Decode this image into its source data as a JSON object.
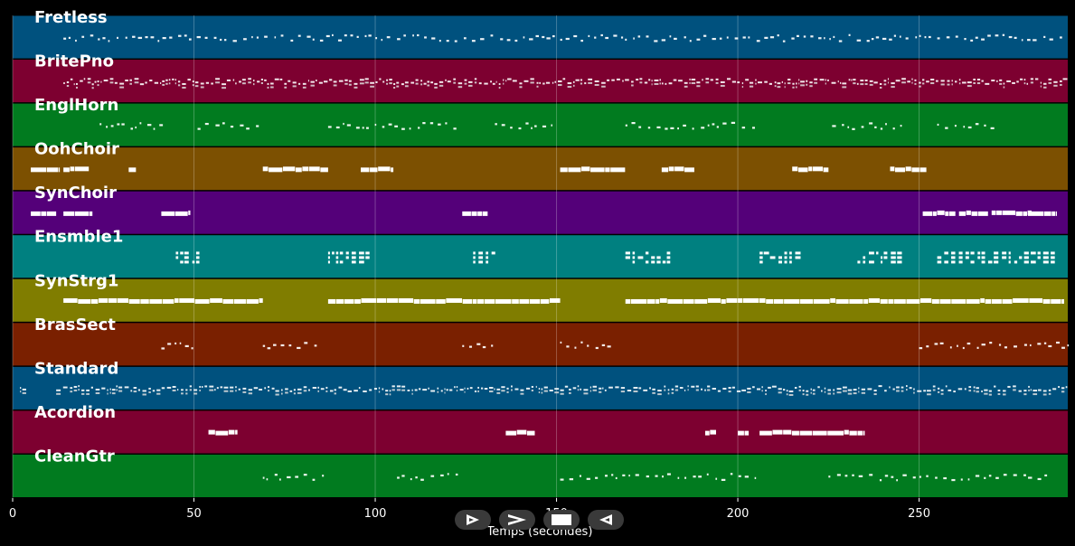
{
  "chart_data": {
    "type": "piano-roll",
    "xlabel": "Temps (secondes)",
    "xlim": [
      0,
      291
    ],
    "x_ticks": [
      0,
      50,
      100,
      150,
      200,
      250
    ],
    "grid": true,
    "tracks": [
      {
        "name": "Fretless",
        "color": "#00517e",
        "style": "dots",
        "segments": [
          [
            14,
            291
          ]
        ]
      },
      {
        "name": "BritePno",
        "color": "#7d0030",
        "style": "dense",
        "segments": [
          [
            14,
            291
          ]
        ]
      },
      {
        "name": "EnglHorn",
        "color": "#017b1f",
        "style": "dots",
        "segments": [
          [
            24,
            42
          ],
          [
            51,
            68
          ],
          [
            87,
            122
          ],
          [
            133,
            150
          ],
          [
            169,
            205
          ],
          [
            226,
            245
          ],
          [
            255,
            270
          ]
        ]
      },
      {
        "name": "OohChoir",
        "color": "#7c5001",
        "style": "blocks",
        "segments": [
          [
            5,
            13
          ],
          [
            14,
            21
          ],
          [
            32,
            34
          ],
          [
            69,
            87
          ],
          [
            96,
            105
          ],
          [
            151,
            169
          ],
          [
            179,
            188
          ],
          [
            215,
            225
          ],
          [
            242,
            252
          ]
        ]
      },
      {
        "name": "SynChoir",
        "color": "#540079",
        "style": "blocks",
        "segments": [
          [
            5,
            12
          ],
          [
            14,
            22
          ],
          [
            41,
            49
          ],
          [
            124,
            131
          ],
          [
            251,
            260
          ],
          [
            261,
            269
          ],
          [
            270,
            281
          ],
          [
            280,
            288
          ]
        ]
      },
      {
        "name": "Ensmble1",
        "color": "#008080",
        "style": "clusters",
        "segments": [
          [
            45,
            52
          ],
          [
            87,
            98
          ],
          [
            127,
            133
          ],
          [
            169,
            181
          ],
          [
            206,
            217
          ],
          [
            233,
            244
          ],
          [
            255,
            288
          ]
        ]
      },
      {
        "name": "SynStrg1",
        "color": "#807d00",
        "style": "blocks",
        "segments": [
          [
            14,
            69
          ],
          [
            87,
            151
          ],
          [
            169,
            290
          ]
        ]
      },
      {
        "name": "BrasSect",
        "color": "#7a2000",
        "style": "dots",
        "segments": [
          [
            41,
            51
          ],
          [
            69,
            85
          ],
          [
            124,
            133
          ],
          [
            151,
            166
          ],
          [
            250,
            291
          ]
        ]
      },
      {
        "name": "Standard",
        "color": "#00517e",
        "style": "dense",
        "segments": [
          [
            2,
            4
          ],
          [
            12,
            291
          ]
        ]
      },
      {
        "name": "Acordion",
        "color": "#7d0030",
        "style": "blocks",
        "segments": [
          [
            54,
            62
          ],
          [
            136,
            144
          ],
          [
            191,
            194
          ],
          [
            200,
            203
          ],
          [
            206,
            235
          ]
        ]
      },
      {
        "name": "CleanGtr",
        "color": "#017b1f",
        "style": "dots",
        "segments": [
          [
            69,
            87
          ],
          [
            106,
            123
          ],
          [
            151,
            205
          ],
          [
            225,
            286
          ]
        ]
      }
    ]
  },
  "controls": [
    {
      "name": "play-button",
      "icon": "play-outline-icon"
    },
    {
      "name": "fast-forward-button",
      "icon": "chevron-right-icon"
    },
    {
      "name": "stop-button",
      "icon": "stop-icon"
    },
    {
      "name": "rewind-button",
      "icon": "rewind-outline-icon"
    }
  ]
}
